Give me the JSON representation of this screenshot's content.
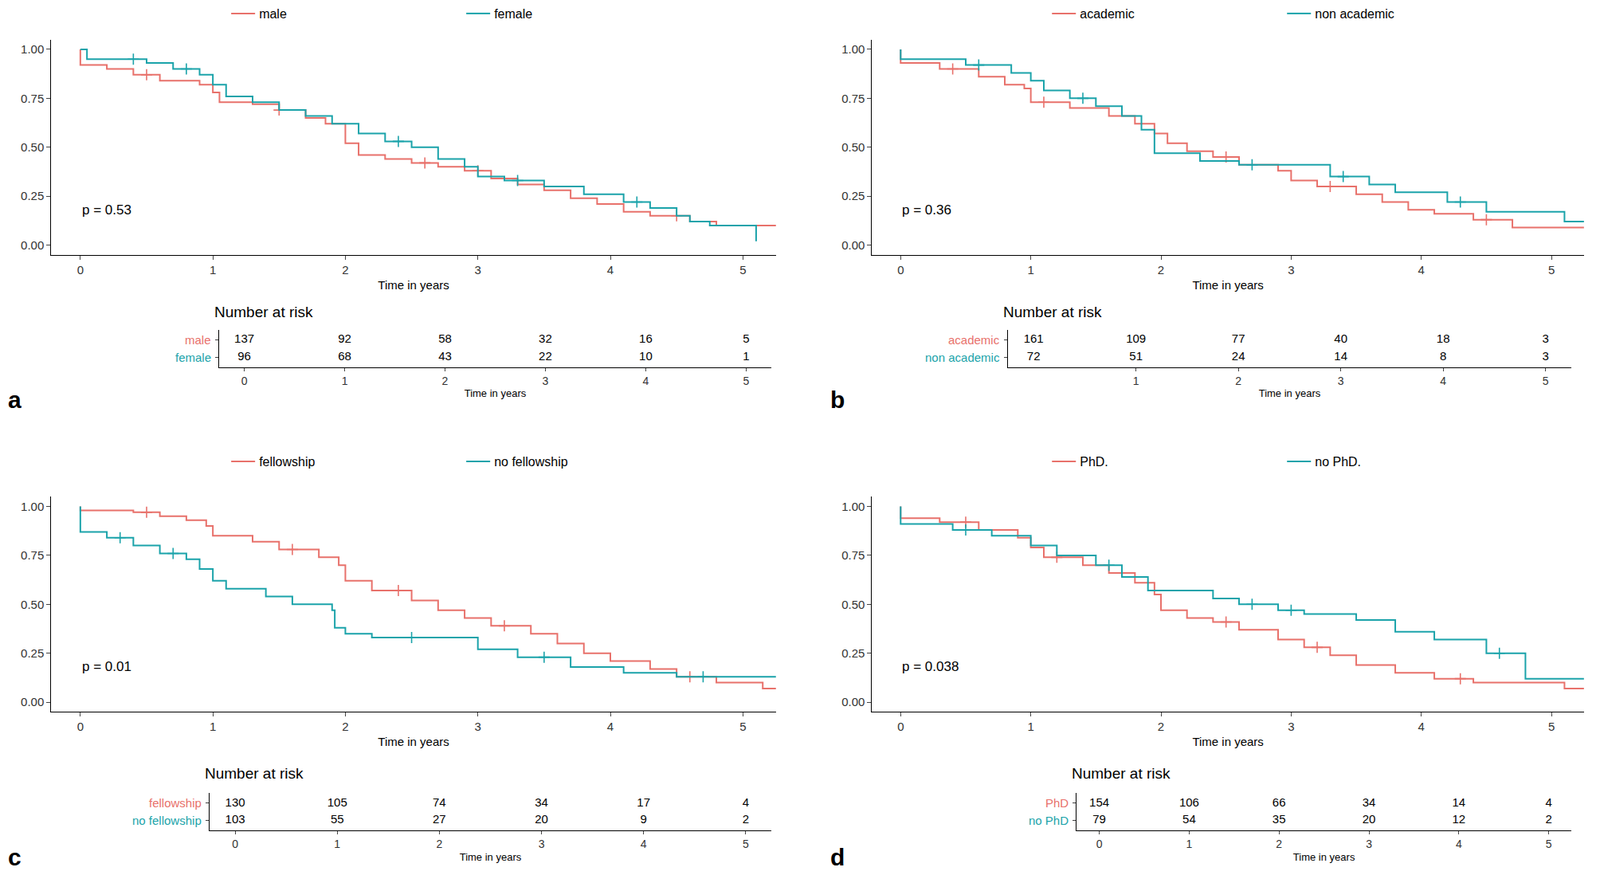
{
  "chart_data": [
    {
      "type": "line",
      "panel": "a",
      "line_style": "step",
      "marker": "cross",
      "grid": false,
      "legend": "top",
      "xlabel": "Time in years",
      "xlim": [
        -0.22,
        5.25
      ],
      "xticks": [
        0,
        1,
        2,
        3,
        4,
        5
      ],
      "ylim": [
        -0.05,
        1.05
      ],
      "yticks": [
        {
          "value": 0,
          "label": "0.00"
        },
        0.25,
        {
          "value": 0.5,
          "label": "0.50"
        },
        0.75,
        {
          "value": 1,
          "label": "1.00"
        }
      ],
      "annotations": [
        "p = 0.53"
      ],
      "series": [
        {
          "name": "male",
          "color": "#E8716B",
          "x": [
            0,
            0,
            0.2,
            0.4,
            0.6,
            0.9,
            1.0,
            1.05,
            1.3,
            1.5,
            1.7,
            1.85,
            2.0,
            2.1,
            2.3,
            2.5,
            2.7,
            2.9,
            3.1,
            3.3,
            3.5,
            3.7,
            3.9,
            4.1,
            4.3,
            4.6,
            4.8,
            5.25
          ],
          "values": [
            1,
            0.92,
            0.9,
            0.87,
            0.84,
            0.82,
            0.78,
            0.73,
            0.72,
            0.69,
            0.65,
            0.62,
            0.52,
            0.46,
            0.44,
            0.42,
            0.4,
            0.38,
            0.34,
            0.31,
            0.28,
            0.24,
            0.21,
            0.17,
            0.15,
            0.12,
            0.1,
            0.1
          ],
          "censored": {
            "x": [
              0.5,
              1.5,
              2.6,
              3.0,
              4.5
            ],
            "values": [
              0.87,
              0.69,
              0.42,
              0.38,
              0.15
            ]
          }
        },
        {
          "name": "female",
          "color": "#1BA3AA",
          "x": [
            0,
            0.05,
            0.5,
            0.7,
            0.9,
            1.0,
            1.1,
            1.3,
            1.5,
            1.7,
            1.9,
            2.1,
            2.3,
            2.5,
            2.7,
            2.9,
            3.0,
            3.2,
            3.5,
            3.8,
            4.1,
            4.3,
            4.5,
            4.6,
            4.75,
            5.1,
            5.1
          ],
          "values": [
            1,
            0.95,
            0.93,
            0.9,
            0.87,
            0.82,
            0.76,
            0.73,
            0.69,
            0.66,
            0.62,
            0.57,
            0.53,
            0.5,
            0.44,
            0.4,
            0.35,
            0.33,
            0.3,
            0.26,
            0.22,
            0.19,
            0.15,
            0.12,
            0.1,
            0.1,
            0.02
          ],
          "censored": {
            "x": [
              0.4,
              0.8,
              2.4,
              3.3,
              4.2
            ],
            "values": [
              0.95,
              0.9,
              0.53,
              0.33,
              0.22
            ]
          }
        }
      ],
      "risk_table": {
        "title": "Number at risk",
        "xlabel": "Time in years",
        "xlim": [
          -0.25,
          5.25
        ],
        "xticks": [
          0,
          1,
          2,
          3,
          4,
          5
        ],
        "x": [
          0,
          1,
          2,
          3,
          4,
          5
        ],
        "rows": [
          {
            "name": "male",
            "color": "#E8716B",
            "values": [
              137,
              92,
              58,
              32,
              16,
              5
            ]
          },
          {
            "name": "female",
            "color": "#1BA3AA",
            "values": [
              96,
              68,
              43,
              22,
              10,
              1
            ]
          }
        ]
      }
    },
    {
      "type": "line",
      "panel": "b",
      "line_style": "step",
      "marker": "cross",
      "grid": false,
      "legend": "top",
      "xlabel": "Time in years",
      "xlim": [
        -0.22,
        5.25
      ],
      "xticks": [
        0,
        1,
        2,
        3,
        4,
        5
      ],
      "ylim": [
        -0.05,
        1.05
      ],
      "yticks": [
        {
          "value": 0,
          "label": "0.00"
        },
        0.25,
        {
          "value": 0.5,
          "label": "0.50"
        },
        0.75,
        {
          "value": 1,
          "label": "1.00"
        }
      ],
      "annotations": [
        "p = 0.36"
      ],
      "series": [
        {
          "name": "academic",
          "color": "#E8716B",
          "x": [
            0,
            0,
            0.3,
            0.6,
            0.8,
            0.95,
            1.0,
            1.3,
            1.6,
            1.8,
            1.95,
            2.05,
            2.2,
            2.4,
            2.6,
            2.9,
            3.0,
            3.2,
            3.5,
            3.7,
            3.9,
            4.1,
            4.4,
            4.7,
            5.25
          ],
          "values": [
            1,
            0.93,
            0.9,
            0.86,
            0.82,
            0.8,
            0.73,
            0.7,
            0.66,
            0.62,
            0.57,
            0.52,
            0.48,
            0.45,
            0.41,
            0.38,
            0.33,
            0.3,
            0.26,
            0.22,
            0.18,
            0.16,
            0.13,
            0.09,
            0.09
          ],
          "censored": {
            "x": [
              0.4,
              1.1,
              2.5,
              3.3,
              4.5
            ],
            "values": [
              0.9,
              0.73,
              0.45,
              0.3,
              0.13
            ]
          }
        },
        {
          "name": "non academic",
          "color": "#1BA3AA",
          "x": [
            0,
            0,
            0.5,
            0.85,
            1.0,
            1.1,
            1.3,
            1.5,
            1.7,
            1.85,
            1.95,
            2.3,
            2.6,
            3.3,
            3.6,
            3.8,
            4.2,
            4.5,
            5.1,
            5.25
          ],
          "values": [
            1,
            0.95,
            0.92,
            0.88,
            0.84,
            0.79,
            0.75,
            0.71,
            0.66,
            0.59,
            0.47,
            0.43,
            0.41,
            0.35,
            0.31,
            0.27,
            0.22,
            0.17,
            0.12,
            0.12
          ],
          "censored": {
            "x": [
              0.6,
              1.4,
              2.7,
              3.4,
              4.3
            ],
            "values": [
              0.92,
              0.75,
              0.41,
              0.35,
              0.22
            ]
          }
        }
      ],
      "risk_table": {
        "title": "Number at risk",
        "xlabel": "Time in years",
        "xlim": [
          -0.25,
          5.25
        ],
        "xticks": [
          1,
          2,
          3,
          4,
          5
        ],
        "x": [
          0,
          1,
          2,
          3,
          4,
          5
        ],
        "rows": [
          {
            "name": "academic",
            "color": "#E8716B",
            "values": [
              161,
              109,
              77,
              40,
              18,
              3
            ]
          },
          {
            "name": "non academic",
            "color": "#1BA3AA",
            "values": [
              72,
              51,
              24,
              14,
              8,
              3
            ]
          }
        ]
      }
    },
    {
      "type": "line",
      "panel": "c",
      "line_style": "step",
      "marker": "cross",
      "grid": false,
      "legend": "top",
      "xlabel": "Time in years",
      "xlim": [
        -0.22,
        5.25
      ],
      "xticks": [
        0,
        1,
        2,
        3,
        4,
        5
      ],
      "ylim": [
        -0.05,
        1.05
      ],
      "yticks": [
        {
          "value": 0,
          "label": "0.00"
        },
        0.25,
        {
          "value": 0.5,
          "label": "0.50"
        },
        0.75,
        {
          "value": 1,
          "label": "1.00"
        }
      ],
      "annotations": [
        "p = 0.01"
      ],
      "series": [
        {
          "name": "fellowship",
          "color": "#E8716B",
          "x": [
            0,
            0,
            0.4,
            0.6,
            0.8,
            0.95,
            1.0,
            1.3,
            1.5,
            1.8,
            1.95,
            2.0,
            2.2,
            2.5,
            2.7,
            2.9,
            3.1,
            3.4,
            3.6,
            3.8,
            4.0,
            4.3,
            4.5,
            4.8,
            5.15,
            5.25
          ],
          "values": [
            1,
            0.98,
            0.97,
            0.95,
            0.93,
            0.9,
            0.85,
            0.82,
            0.78,
            0.74,
            0.7,
            0.62,
            0.57,
            0.52,
            0.47,
            0.43,
            0.39,
            0.35,
            0.3,
            0.25,
            0.21,
            0.17,
            0.13,
            0.1,
            0.07,
            0.07
          ],
          "censored": {
            "x": [
              0.5,
              1.6,
              2.4,
              3.2,
              4.6
            ],
            "values": [
              0.97,
              0.78,
              0.57,
              0.39,
              0.13
            ]
          }
        },
        {
          "name": "no fellowship",
          "color": "#1BA3AA",
          "x": [
            0,
            0,
            0.2,
            0.4,
            0.6,
            0.8,
            0.9,
            1.0,
            1.1,
            1.4,
            1.6,
            1.9,
            1.92,
            2.0,
            2.2,
            3.0,
            3.3,
            3.7,
            4.1,
            4.5,
            5.25
          ],
          "values": [
            1,
            0.87,
            0.84,
            0.8,
            0.76,
            0.73,
            0.68,
            0.62,
            0.58,
            0.54,
            0.5,
            0.47,
            0.38,
            0.35,
            0.33,
            0.27,
            0.23,
            0.18,
            0.15,
            0.13,
            0.13
          ],
          "censored": {
            "x": [
              0.3,
              0.7,
              2.5,
              3.5,
              4.7
            ],
            "values": [
              0.84,
              0.76,
              0.33,
              0.23,
              0.13
            ]
          }
        }
      ],
      "risk_table": {
        "title": "Number at risk",
        "xlabel": "Time in years",
        "xlim": [
          -0.25,
          5.25
        ],
        "xticks": [
          0,
          1,
          2,
          3,
          4,
          5
        ],
        "x": [
          0,
          1,
          2,
          3,
          4,
          5
        ],
        "rows": [
          {
            "name": "fellowship",
            "color": "#E8716B",
            "values": [
              130,
              105,
              74,
              34,
              17,
              4
            ]
          },
          {
            "name": "no fellowship",
            "color": "#1BA3AA",
            "values": [
              103,
              55,
              27,
              20,
              9,
              2
            ]
          }
        ]
      }
    },
    {
      "type": "line",
      "panel": "d",
      "line_style": "step",
      "marker": "cross",
      "grid": false,
      "legend": "top",
      "xlabel": "Time in years",
      "xlim": [
        -0.22,
        5.25
      ],
      "xticks": [
        0,
        1,
        2,
        3,
        4,
        5
      ],
      "ylim": [
        -0.05,
        1.05
      ],
      "yticks": [
        {
          "value": 0,
          "label": "0.00"
        },
        0.25,
        {
          "value": 0.5,
          "label": "0.50"
        },
        0.75,
        {
          "value": 1,
          "label": "1.00"
        }
      ],
      "annotations": [
        "p = 0.038"
      ],
      "series": [
        {
          "name": "PhD.",
          "color": "#E8716B",
          "x": [
            0,
            0,
            0.3,
            0.6,
            0.9,
            1.0,
            1.1,
            1.4,
            1.6,
            1.8,
            1.95,
            2.0,
            2.2,
            2.4,
            2.6,
            2.9,
            3.1,
            3.3,
            3.5,
            3.8,
            4.1,
            4.4,
            5.1,
            5.25
          ],
          "values": [
            1,
            0.94,
            0.92,
            0.88,
            0.84,
            0.79,
            0.74,
            0.7,
            0.66,
            0.61,
            0.55,
            0.47,
            0.43,
            0.41,
            0.37,
            0.32,
            0.28,
            0.24,
            0.19,
            0.15,
            0.12,
            0.1,
            0.07,
            0.07
          ],
          "censored": {
            "x": [
              0.5,
              1.2,
              2.5,
              3.2,
              4.3
            ],
            "values": [
              0.92,
              0.74,
              0.41,
              0.28,
              0.12
            ]
          }
        },
        {
          "name": "no PhD.",
          "color": "#1BA3AA",
          "x": [
            0,
            0,
            0.4,
            0.7,
            1.0,
            1.2,
            1.5,
            1.7,
            1.9,
            2.4,
            2.6,
            2.9,
            3.1,
            3.5,
            3.8,
            4.1,
            4.5,
            4.8,
            5.25
          ],
          "values": [
            1,
            0.91,
            0.88,
            0.85,
            0.8,
            0.75,
            0.7,
            0.64,
            0.57,
            0.53,
            0.5,
            0.47,
            0.45,
            0.42,
            0.36,
            0.32,
            0.25,
            0.12,
            0.12
          ],
          "censored": {
            "x": [
              0.5,
              1.6,
              2.7,
              3.0,
              4.6
            ],
            "values": [
              0.88,
              0.7,
              0.5,
              0.47,
              0.25
            ]
          }
        }
      ],
      "risk_table": {
        "title": "Number at risk",
        "xlabel": "Time in years",
        "xlim": [
          -0.25,
          5.25
        ],
        "xticks": [
          0,
          1,
          2,
          3,
          4,
          5
        ],
        "x": [
          0,
          1,
          2,
          3,
          4,
          5
        ],
        "rows": [
          {
            "name": "PhD",
            "color": "#E8716B",
            "values": [
              154,
              106,
              66,
              34,
              14,
              4
            ]
          },
          {
            "name": "no PhD",
            "color": "#1BA3AA",
            "values": [
              79,
              54,
              35,
              20,
              12,
              2
            ]
          }
        ]
      }
    }
  ]
}
